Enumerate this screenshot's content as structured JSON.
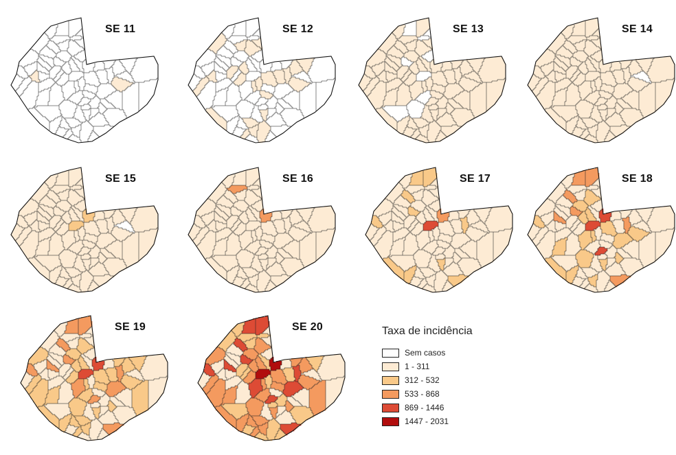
{
  "legend": {
    "title": "Taxa de incidência",
    "classes": [
      {
        "label": "Sem casos",
        "color": "#ffffff"
      },
      {
        "label": "1 - 311",
        "color": "#fdebd4"
      },
      {
        "label": "312 - 532",
        "color": "#f9c989"
      },
      {
        "label": "533 - 868",
        "color": "#f49a5f"
      },
      {
        "label": "869 - 1446",
        "color": "#dd4b35"
      },
      {
        "label": "1447 - 2031",
        "color": "#b10d0d"
      }
    ]
  },
  "panels": [
    {
      "title": "SE 11",
      "levels": [
        0,
        0,
        0,
        0,
        0,
        0,
        0,
        0,
        0,
        0,
        0,
        0,
        0,
        0,
        0,
        0,
        0,
        0,
        0,
        0,
        0,
        0,
        0,
        0,
        0,
        0,
        0,
        0,
        0,
        0,
        0,
        1,
        0,
        0,
        0,
        0,
        1,
        0,
        0,
        0,
        0,
        0,
        0,
        0,
        0,
        0,
        0,
        0,
        0,
        0,
        0,
        0,
        0,
        0,
        0,
        0,
        0,
        0,
        0,
        0,
        0,
        0,
        0,
        0,
        0,
        0,
        0,
        0,
        0,
        0,
        0,
        0,
        0,
        0,
        0,
        0,
        0,
        0,
        0,
        0
      ]
    },
    {
      "title": "SE 12",
      "levels": [
        0,
        0,
        0,
        1,
        1,
        1,
        1,
        1,
        0,
        0,
        0,
        1,
        1,
        1,
        0,
        0,
        1,
        1,
        1,
        1,
        1,
        0,
        1,
        1,
        0,
        0,
        0,
        1,
        0,
        1,
        0,
        1,
        1,
        0,
        0,
        1,
        1,
        0,
        0,
        0,
        1,
        1,
        0,
        0,
        0,
        1,
        0,
        0,
        0,
        0,
        0,
        0,
        0,
        0,
        0,
        0,
        0,
        0,
        0,
        0,
        0,
        0,
        0,
        0,
        0,
        0,
        0,
        0,
        0,
        0,
        0,
        0,
        0,
        0,
        0,
        0,
        0,
        0,
        0,
        0
      ]
    },
    {
      "title": "SE 13",
      "levels": [
        1,
        1,
        1,
        1,
        1,
        1,
        1,
        1,
        0,
        1,
        1,
        1,
        1,
        1,
        1,
        1,
        1,
        1,
        1,
        1,
        1,
        1,
        1,
        1,
        1,
        1,
        1,
        1,
        1,
        1,
        1,
        1,
        1,
        1,
        1,
        1,
        1,
        1,
        1,
        1,
        1,
        1,
        1,
        1,
        1,
        1,
        1,
        0,
        1,
        1,
        1,
        1,
        1,
        1,
        1,
        0,
        1,
        1,
        0,
        1,
        0,
        1,
        1,
        1,
        0,
        1,
        1,
        1,
        0,
        1,
        1,
        1,
        1,
        1,
        1,
        1,
        0,
        1,
        0,
        1
      ]
    },
    {
      "title": "SE 14",
      "levels": [
        1,
        1,
        1,
        1,
        1,
        1,
        1,
        1,
        1,
        1,
        1,
        1,
        1,
        1,
        1,
        1,
        1,
        1,
        1,
        1,
        1,
        1,
        1,
        1,
        1,
        1,
        1,
        1,
        1,
        1,
        1,
        1,
        1,
        1,
        1,
        1,
        1,
        1,
        1,
        1,
        1,
        1,
        1,
        1,
        1,
        1,
        1,
        1,
        1,
        1,
        1,
        1,
        1,
        1,
        1,
        1,
        1,
        1,
        1,
        1,
        1,
        1,
        1,
        1,
        1,
        1,
        1,
        1,
        1,
        1,
        1,
        1,
        1,
        1,
        1,
        1,
        1,
        1,
        1,
        0
      ]
    },
    {
      "title": "SE 15",
      "levels": [
        1,
        1,
        1,
        1,
        1,
        1,
        1,
        1,
        1,
        1,
        1,
        1,
        1,
        1,
        1,
        1,
        1,
        1,
        1,
        1,
        1,
        1,
        1,
        1,
        1,
        1,
        1,
        1,
        1,
        1,
        1,
        1,
        1,
        1,
        1,
        1,
        1,
        1,
        1,
        1,
        1,
        1,
        1,
        1,
        1,
        1,
        1,
        1,
        1,
        1,
        1,
        1,
        1,
        1,
        1,
        1,
        1,
        1,
        1,
        1,
        1,
        1,
        2,
        1,
        2,
        1,
        1,
        1,
        1,
        1,
        1,
        1,
        1,
        1,
        1,
        1,
        1,
        1,
        1,
        0
      ]
    },
    {
      "title": "SE 16",
      "levels": [
        1,
        1,
        1,
        1,
        1,
        1,
        1,
        1,
        1,
        1,
        1,
        1,
        1,
        1,
        1,
        1,
        1,
        1,
        1,
        1,
        1,
        1,
        1,
        1,
        1,
        1,
        1,
        1,
        1,
        1,
        1,
        1,
        1,
        1,
        1,
        1,
        1,
        1,
        1,
        1,
        1,
        1,
        1,
        1,
        1,
        1,
        1,
        1,
        1,
        1,
        1,
        1,
        1,
        1,
        1,
        1,
        1,
        1,
        1,
        1,
        1,
        1,
        3,
        1,
        1,
        1,
        3,
        1,
        1,
        1,
        1,
        1,
        1,
        1,
        1,
        1,
        1,
        1,
        1,
        1
      ]
    },
    {
      "title": "SE 17",
      "levels": [
        1,
        1,
        1,
        1,
        1,
        1,
        1,
        2,
        2,
        1,
        1,
        2,
        1,
        1,
        1,
        1,
        1,
        1,
        1,
        1,
        1,
        1,
        1,
        1,
        1,
        1,
        2,
        1,
        1,
        1,
        2,
        1,
        1,
        1,
        1,
        2,
        1,
        1,
        1,
        1,
        1,
        1,
        1,
        1,
        1,
        1,
        1,
        1,
        1,
        1,
        1,
        1,
        2,
        1,
        1,
        1,
        1,
        1,
        1,
        1,
        2,
        2,
        3,
        2,
        4,
        1,
        1,
        1,
        1,
        1,
        1,
        1,
        1,
        1,
        1,
        1,
        1,
        1,
        1,
        1
      ]
    },
    {
      "title": "SE 18",
      "levels": [
        1,
        1,
        1,
        1,
        2,
        2,
        2,
        3,
        3,
        1,
        1,
        2,
        1,
        1,
        1,
        1,
        1,
        2,
        1,
        1,
        1,
        1,
        1,
        1,
        3,
        4,
        3,
        1,
        1,
        2,
        3,
        2,
        1,
        1,
        2,
        2,
        1,
        1,
        1,
        1,
        1,
        1,
        1,
        1,
        1,
        1,
        1,
        1,
        1,
        1,
        1,
        1,
        2,
        1,
        1,
        1,
        2,
        2,
        2,
        2,
        3,
        3,
        4,
        2,
        4,
        1,
        1,
        2,
        1,
        2,
        1,
        1,
        1,
        1,
        1,
        1,
        1,
        1,
        1,
        1
      ]
    },
    {
      "title": "SE 19",
      "levels": [
        1,
        1,
        1,
        2,
        2,
        2,
        2,
        3,
        3,
        1,
        1,
        2,
        2,
        1,
        2,
        1,
        2,
        2,
        1,
        2,
        1,
        1,
        1,
        2,
        3,
        3,
        3,
        2,
        2,
        2,
        3,
        2,
        2,
        1,
        2,
        2,
        1,
        1,
        1,
        1,
        1,
        1,
        1,
        1,
        1,
        1,
        1,
        1,
        1,
        1,
        1,
        2,
        2,
        2,
        1,
        2,
        2,
        3,
        2,
        3,
        3,
        3,
        4,
        3,
        4,
        2,
        1,
        2,
        1,
        2,
        2,
        1,
        1,
        1,
        1,
        1,
        1,
        1,
        1,
        1
      ]
    },
    {
      "title": "SE 20",
      "levels": [
        1,
        1,
        2,
        2,
        3,
        3,
        3,
        4,
        4,
        2,
        1,
        3,
        3,
        2,
        3,
        2,
        3,
        3,
        2,
        2,
        2,
        1,
        2,
        3,
        4,
        4,
        4,
        3,
        3,
        3,
        4,
        3,
        3,
        2,
        3,
        3,
        1,
        2,
        1,
        1,
        1,
        1,
        2,
        1,
        1,
        2,
        1,
        1,
        1,
        1,
        2,
        3,
        3,
        3,
        2,
        3,
        3,
        4,
        3,
        4,
        4,
        4,
        5,
        4,
        5,
        3,
        2,
        3,
        2,
        3,
        3,
        2,
        1,
        1,
        1,
        1,
        2,
        1,
        1,
        1
      ]
    }
  ]
}
